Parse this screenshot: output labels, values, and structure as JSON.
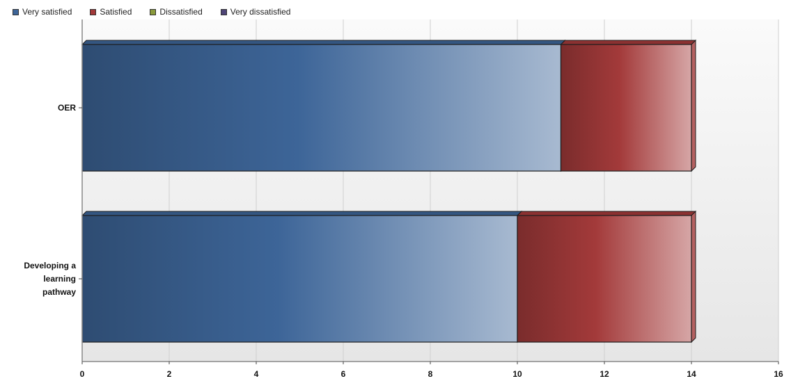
{
  "chart_data": {
    "type": "bar",
    "orientation": "horizontal",
    "stacked": true,
    "categories": [
      "OER",
      "Developing a learning pathway"
    ],
    "series": [
      {
        "name": "Very satisfied",
        "values": [
          11,
          10
        ],
        "color": "#3d6598"
      },
      {
        "name": "Satisfied",
        "values": [
          3,
          4
        ],
        "color": "#a33a3a"
      },
      {
        "name": "Dissatisfied",
        "values": [
          0,
          0
        ],
        "color": "#8a9a3c"
      },
      {
        "name": "Very dissatisfied",
        "values": [
          0,
          0
        ],
        "color": "#4f4577"
      }
    ],
    "xticks": [
      "0",
      "2",
      "4",
      "6",
      "8",
      "10",
      "12",
      "14",
      "16"
    ],
    "xlim": [
      0,
      16
    ],
    "grid": true,
    "legend": "top-left",
    "title": "",
    "xlabel": "",
    "ylabel": ""
  }
}
